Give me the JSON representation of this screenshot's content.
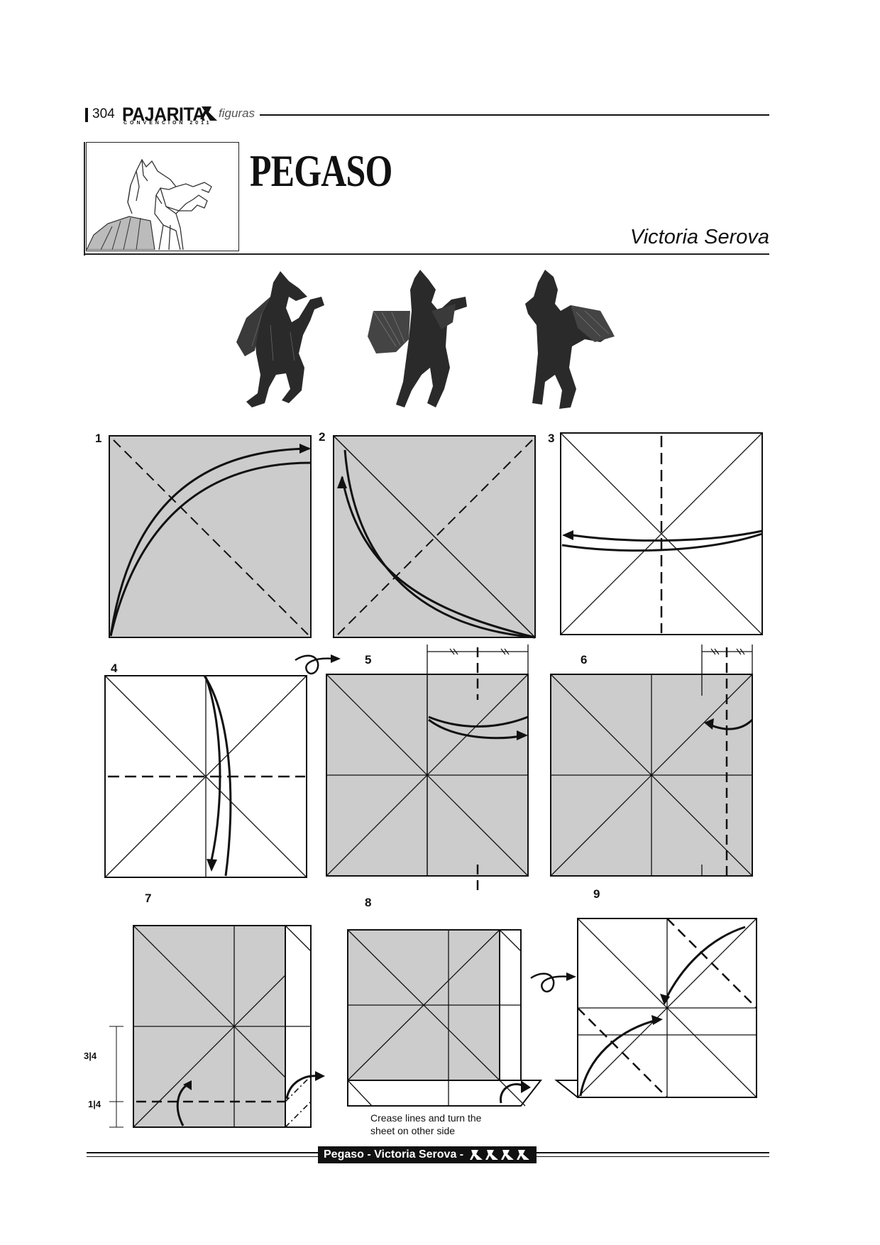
{
  "header": {
    "page_number": "304",
    "magazine": "PAJARITA",
    "magazine_subtitle": "CONVENCION 2011",
    "section": "figuras"
  },
  "title": "PEGASO",
  "author": "Victoria Serova",
  "steps": [
    {
      "number": "1"
    },
    {
      "number": "2"
    },
    {
      "number": "3"
    },
    {
      "number": "4"
    },
    {
      "number": "5"
    },
    {
      "number": "6"
    },
    {
      "number": "7"
    },
    {
      "number": "8"
    },
    {
      "number": "9"
    }
  ],
  "step7_fractions": {
    "upper": "3|4",
    "lower": "1|4"
  },
  "step8_caption_line1": "Crease lines and turn the",
  "step8_caption_line2": "sheet on other side",
  "footer": {
    "label": "Pegaso - Victoria Serova -",
    "difficulty_icon": "bird-icon",
    "difficulty_count": 4
  },
  "colors": {
    "paper_color": "#cccccc",
    "line_color": "#111111",
    "background": "#ffffff"
  }
}
